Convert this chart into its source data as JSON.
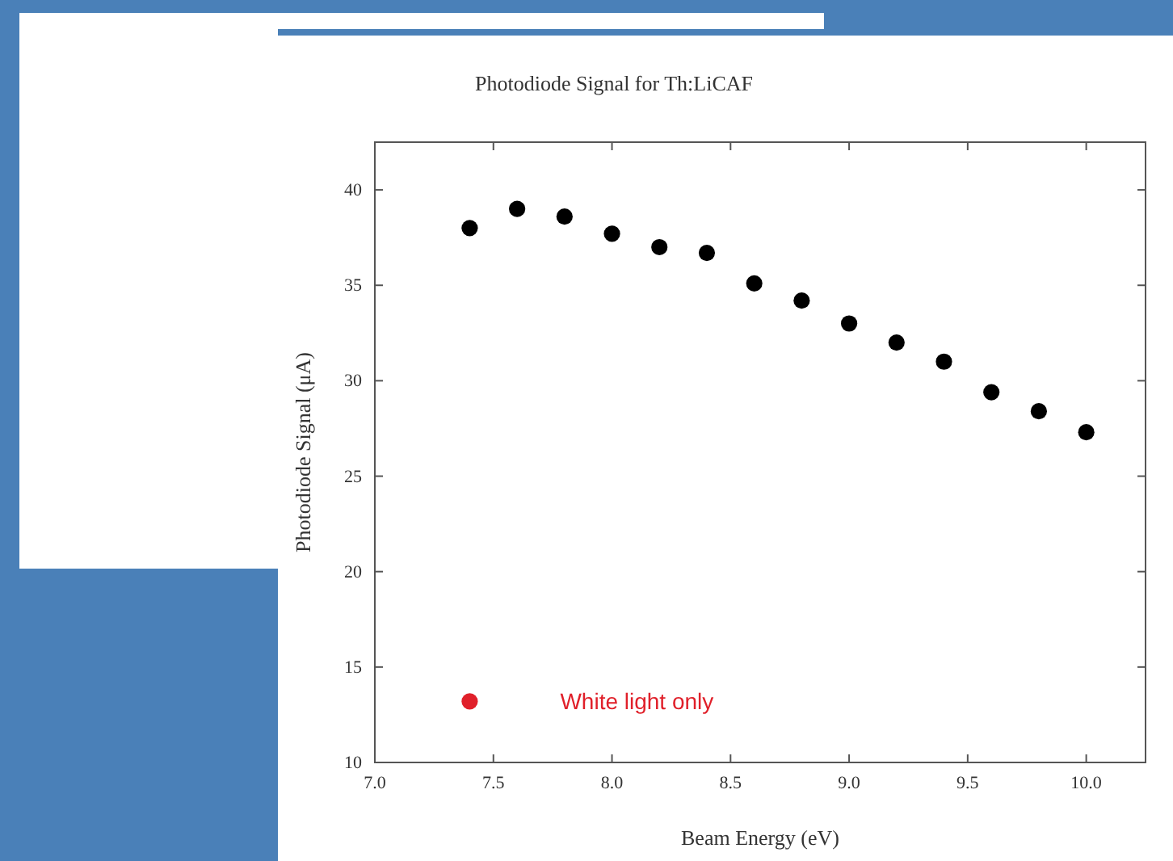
{
  "chart_data": {
    "type": "scatter",
    "title": "Photodiode Signal for Th:LiCAF",
    "xlabel": "Beam Energy (eV)",
    "ylabel": "Photodiode Signal (μA)",
    "xlim": [
      7,
      10.25
    ],
    "xticks": [
      {
        "value": 7,
        "label": "7.0"
      },
      {
        "value": 7.5,
        "label": "7.5"
      },
      {
        "value": 8,
        "label": "8.0"
      },
      {
        "value": 8.5,
        "label": "8.5"
      },
      {
        "value": 9,
        "label": "9.0"
      },
      {
        "value": 9.5,
        "label": "9.5"
      },
      {
        "value": 10,
        "label": "10.0"
      }
    ],
    "ylim": [
      10,
      42.5
    ],
    "yticks": [
      10,
      15,
      20,
      25,
      30,
      35,
      40
    ],
    "marker": "circle",
    "grid": false,
    "legend": false,
    "series": [
      {
        "color": "#000000",
        "x": [
          7.4,
          7.6,
          7.8,
          8.0,
          8.2,
          8.4,
          8.6,
          8.8,
          9.0,
          9.2,
          9.4,
          9.6,
          9.8,
          10.0
        ],
        "values": [
          38.0,
          39.0,
          38.6,
          37.7,
          37.0,
          36.7,
          35.1,
          34.2,
          33.0,
          32.0,
          31.0,
          29.4,
          28.4,
          27.3
        ]
      },
      {
        "name": "White light only",
        "color": "#e0202a",
        "x": [
          7.4
        ],
        "values": [
          13.2
        ]
      }
    ]
  }
}
